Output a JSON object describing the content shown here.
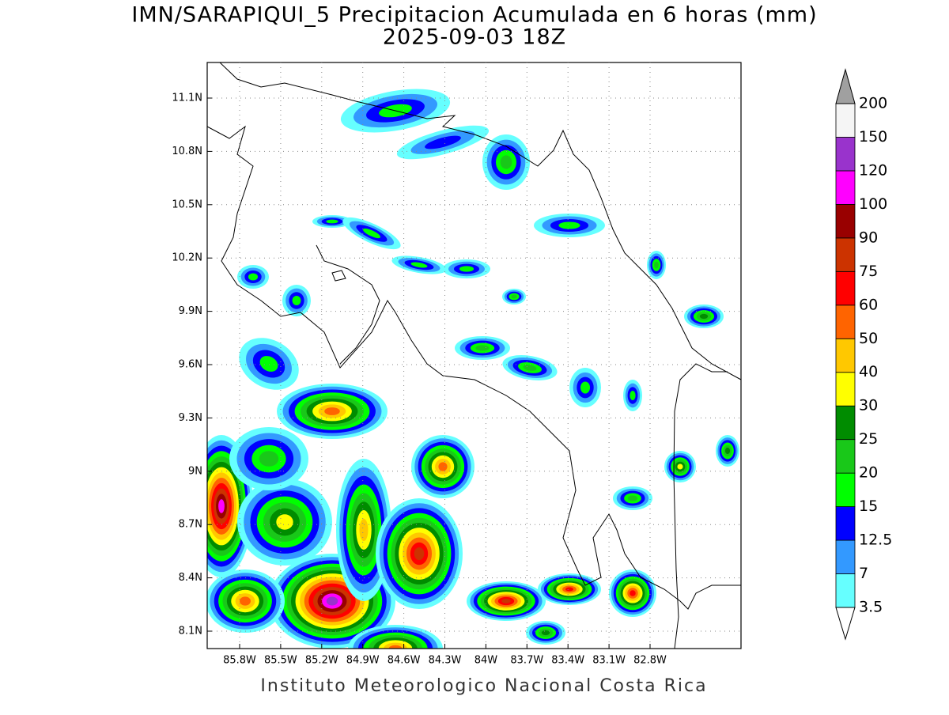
{
  "title": "IMN/SARAPIQUI_5 Precipitacion Acumulada en 6 horas (mm)",
  "subtitle": "2025-09-03 18Z",
  "lat_ticks": [
    "11.1N",
    "10.8N",
    "10.5N",
    "10.2N",
    "9.9N",
    "9.6N",
    "9.3N",
    "9N",
    "8.7N",
    "8.4N",
    "8.1N"
  ],
  "lon_ticks": [
    "85.8W",
    "85.5W",
    "85.2W",
    "84.9W",
    "84.6W",
    "84.3W",
    "84W",
    "83.7W",
    "83.4W",
    "83.1W",
    "82.8W"
  ],
  "colorbar": {
    "labels": [
      "3.5",
      "7",
      "12.5",
      "15",
      "20",
      "25",
      "30",
      "40",
      "50",
      "60",
      "75",
      "90",
      "100",
      "120",
      "150",
      "200"
    ],
    "colors": [
      "#66ffff",
      "#3399ff",
      "#0000ff",
      "#00ff00",
      "#19c819",
      "#008c00",
      "#ffff00",
      "#ffc800",
      "#ff6400",
      "#ff0000",
      "#cc3300",
      "#990000",
      "#ff00ff",
      "#9933cc",
      "#f5f5f5"
    ],
    "over_color": "#a0a0a0",
    "under_color": "#ffffff"
  },
  "footer": "Instituto Meteorologico Nacional Costa Rica"
}
